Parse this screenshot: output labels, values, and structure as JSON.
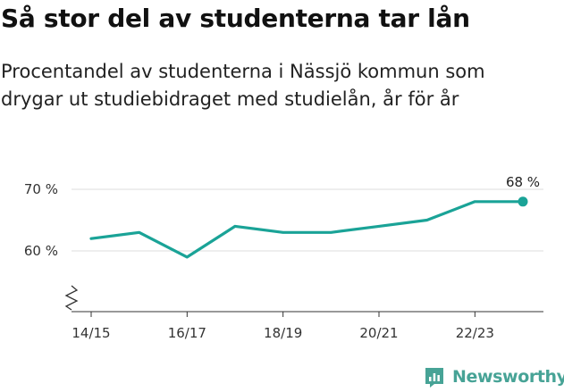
{
  "header": {
    "title": "Så stor del av studenterna tar lån",
    "subtitle_lines": [
      "Procentandel av studenterna i Nässjö kommun som",
      "drygar ut studiebidraget med studielån, år för år"
    ]
  },
  "brand": {
    "name": "Newsworthy",
    "icon": "newsworthy-logo-icon",
    "color": "#47a396"
  },
  "chart_data": {
    "type": "line",
    "x": [
      "14/15",
      "15/16",
      "16/17",
      "17/18",
      "18/19",
      "19/20",
      "20/21",
      "21/22",
      "22/23",
      "23/24"
    ],
    "series": [
      {
        "values": [
          62,
          63,
          59,
          64,
          63,
          63,
          64,
          65,
          68,
          68
        ],
        "color": "#1aa397"
      }
    ],
    "x_tick_labels": [
      "14/15",
      "16/17",
      "18/19",
      "20/21",
      "22/23"
    ],
    "y_ticks": [
      60,
      70
    ],
    "y_tick_labels": [
      "60 %",
      "70 %"
    ],
    "y_axis_broken": true,
    "ylim": [
      50,
      70
    ],
    "grid": true,
    "end_label": "68 %",
    "xlabel": "",
    "ylabel": ""
  }
}
